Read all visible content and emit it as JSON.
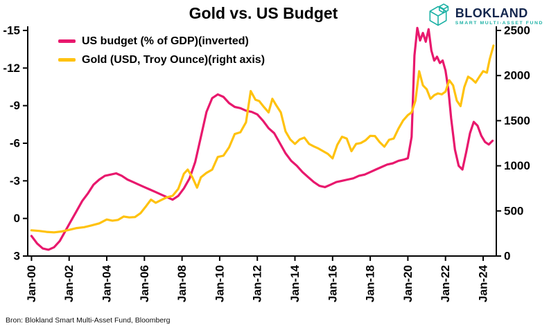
{
  "header": {
    "title": "Gold vs. US Budget",
    "logo": {
      "name": "BLOKLAND",
      "subtitle": "SMART MULTI-ASSET FUND"
    }
  },
  "footer": {
    "source": "Bron: Blokland Smart Multi-Asset Fund, Bloomberg"
  },
  "colors": {
    "budget_line": "#e8186d",
    "gold_line": "#ffc20e",
    "axis": "#000000",
    "logo_navy": "#13264d",
    "logo_teal": "#1eb2a6"
  },
  "chart_data": {
    "type": "line",
    "title": "Gold vs. US Budget",
    "grid": false,
    "legend_position": "top-left",
    "left_axis": {
      "label": "US budget (% of GDP), inverted",
      "ticks": [
        -15,
        -12,
        -9,
        -6,
        -3,
        0,
        3
      ],
      "range_top": -15,
      "range_bottom": 3
    },
    "right_axis": {
      "label": "Gold (USD, Troy Ounce)",
      "ticks": [
        2500,
        2000,
        1500,
        1000,
        500,
        0
      ],
      "range": [
        0,
        2500
      ]
    },
    "x_axis": {
      "range": [
        1999.8,
        2024.7
      ],
      "tick_positions": [
        2000,
        2002,
        2004,
        2006,
        2008,
        2010,
        2012,
        2014,
        2016,
        2018,
        2020,
        2022,
        2024
      ],
      "tick_labels": [
        "Jan-00",
        "Jan-02",
        "Jan-04",
        "Jan-06",
        "Jan-08",
        "Jan-10",
        "Jan-12",
        "Jan-14",
        "Jan-16",
        "Jan-18",
        "Jan-20",
        "Jan-22",
        "Jan-24"
      ]
    },
    "series": [
      {
        "name": "US budget (% of GDP)(inverted)",
        "color": "#e8186d",
        "axis": "left",
        "x": [
          2000.0,
          2000.3,
          2000.6,
          2000.9,
          2001.2,
          2001.5,
          2001.8,
          2002.1,
          2002.4,
          2002.7,
          2003.0,
          2003.3,
          2003.6,
          2003.9,
          2004.2,
          2004.5,
          2004.8,
          2005.1,
          2005.4,
          2005.7,
          2006.0,
          2006.3,
          2006.6,
          2006.9,
          2007.2,
          2007.5,
          2007.8,
          2008.1,
          2008.4,
          2008.7,
          2009.0,
          2009.3,
          2009.6,
          2009.9,
          2010.2,
          2010.5,
          2010.8,
          2011.1,
          2011.4,
          2011.7,
          2012.0,
          2012.3,
          2012.6,
          2012.9,
          2013.2,
          2013.5,
          2013.8,
          2014.1,
          2014.4,
          2014.7,
          2015.0,
          2015.3,
          2015.6,
          2015.9,
          2016.2,
          2016.5,
          2016.8,
          2017.1,
          2017.4,
          2017.7,
          2018.0,
          2018.3,
          2018.6,
          2018.9,
          2019.2,
          2019.5,
          2019.8,
          2020.0,
          2020.2,
          2020.35,
          2020.5,
          2020.65,
          2020.8,
          2020.95,
          2021.1,
          2021.25,
          2021.4,
          2021.55,
          2021.7,
          2021.85,
          2022.0,
          2022.15,
          2022.3,
          2022.5,
          2022.7,
          2022.9,
          2023.1,
          2023.3,
          2023.5,
          2023.7,
          2023.9,
          2024.1,
          2024.3,
          2024.5
        ],
        "values": [
          1.4,
          2.0,
          2.4,
          2.5,
          2.3,
          1.8,
          1.0,
          0.2,
          -0.6,
          -1.4,
          -2.0,
          -2.7,
          -3.1,
          -3.4,
          -3.5,
          -3.6,
          -3.4,
          -3.1,
          -2.9,
          -2.7,
          -2.5,
          -2.3,
          -2.1,
          -1.9,
          -1.7,
          -1.5,
          -1.8,
          -2.4,
          -3.2,
          -4.5,
          -6.5,
          -8.5,
          -9.6,
          -9.9,
          -9.7,
          -9.2,
          -8.9,
          -8.8,
          -8.6,
          -8.5,
          -8.3,
          -7.8,
          -7.2,
          -6.8,
          -6.0,
          -5.2,
          -4.6,
          -4.2,
          -3.7,
          -3.3,
          -2.9,
          -2.6,
          -2.5,
          -2.7,
          -2.9,
          -3.0,
          -3.1,
          -3.2,
          -3.4,
          -3.5,
          -3.7,
          -3.9,
          -4.1,
          -4.3,
          -4.4,
          -4.6,
          -4.7,
          -4.8,
          -6.5,
          -13.0,
          -15.2,
          -14.2,
          -14.8,
          -14.1,
          -15.1,
          -13.4,
          -12.6,
          -12.9,
          -12.4,
          -12.6,
          -11.8,
          -10.3,
          -8.0,
          -5.5,
          -4.2,
          -3.9,
          -5.3,
          -6.8,
          -7.7,
          -7.4,
          -6.6,
          -6.1,
          -5.9,
          -6.2
        ]
      },
      {
        "name": "Gold (USD, Troy Ounce)(right axis)",
        "color": "#ffc20e",
        "axis": "right",
        "x": [
          2000.0,
          2000.4,
          2000.8,
          2001.2,
          2001.6,
          2002.0,
          2002.4,
          2002.8,
          2003.2,
          2003.6,
          2004.0,
          2004.3,
          2004.6,
          2004.9,
          2005.2,
          2005.5,
          2005.8,
          2006.1,
          2006.35,
          2006.6,
          2006.9,
          2007.2,
          2007.5,
          2007.8,
          2008.1,
          2008.3,
          2008.55,
          2008.8,
          2009.0,
          2009.3,
          2009.6,
          2009.9,
          2010.2,
          2010.5,
          2010.8,
          2011.1,
          2011.4,
          2011.65,
          2011.9,
          2012.1,
          2012.35,
          2012.6,
          2012.8,
          2013.0,
          2013.25,
          2013.5,
          2013.75,
          2014.0,
          2014.25,
          2014.5,
          2014.75,
          2015.0,
          2015.25,
          2015.5,
          2015.75,
          2016.0,
          2016.25,
          2016.5,
          2016.75,
          2017.0,
          2017.25,
          2017.5,
          2017.75,
          2018.0,
          2018.25,
          2018.5,
          2018.75,
          2019.0,
          2019.25,
          2019.5,
          2019.75,
          2020.0,
          2020.2,
          2020.4,
          2020.6,
          2020.8,
          2021.0,
          2021.2,
          2021.4,
          2021.6,
          2021.8,
          2022.0,
          2022.2,
          2022.4,
          2022.6,
          2022.8,
          2023.0,
          2023.2,
          2023.4,
          2023.6,
          2023.8,
          2024.0,
          2024.2,
          2024.35,
          2024.55
        ],
        "values": [
          285,
          278,
          268,
          262,
          272,
          290,
          310,
          320,
          340,
          362,
          405,
          392,
          400,
          438,
          428,
          432,
          476,
          555,
          625,
          590,
          622,
          652,
          667,
          745,
          912,
          958,
          872,
          758,
          872,
          922,
          958,
          1098,
          1112,
          1205,
          1352,
          1372,
          1482,
          1828,
          1732,
          1718,
          1652,
          1592,
          1742,
          1672,
          1592,
          1382,
          1292,
          1242,
          1292,
          1312,
          1242,
          1215,
          1192,
          1162,
          1132,
          1082,
          1232,
          1322,
          1302,
          1162,
          1242,
          1252,
          1282,
          1332,
          1330,
          1262,
          1212,
          1288,
          1302,
          1412,
          1502,
          1562,
          1592,
          1722,
          2048,
          1892,
          1848,
          1742,
          1782,
          1802,
          1792,
          1822,
          1948,
          1892,
          1722,
          1662,
          1872,
          1988,
          1962,
          1922,
          1988,
          2048,
          2032,
          2182,
          2332
        ]
      }
    ]
  }
}
